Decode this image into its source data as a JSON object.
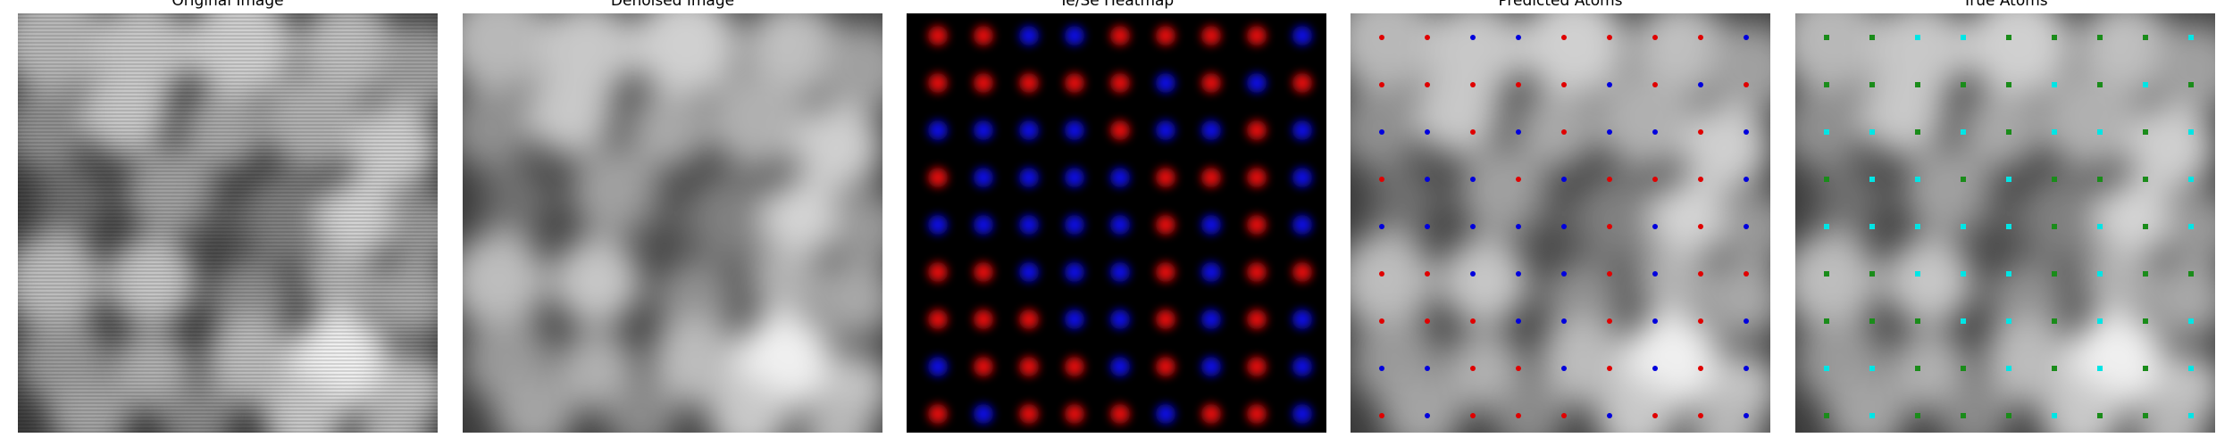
{
  "panels": [
    {
      "id": "original",
      "title": "Original Image"
    },
    {
      "id": "denoised",
      "title": "Denoised Image"
    },
    {
      "id": "heatmap",
      "title": "Te/Se Heatmap"
    },
    {
      "id": "predicted",
      "title": "Predicted Atoms"
    },
    {
      "id": "true",
      "title": "True Atoms"
    }
  ],
  "colors": {
    "te": "#e01010",
    "se": "#1010e0",
    "predicted_te": "#e00000",
    "predicted_se": "#0000dd",
    "true_a": "#00e5e5",
    "true_b": "#1a8c1a"
  },
  "lattice": {
    "heatmap": [
      "RRBBRRRRB",
      "RRRRRBRBR",
      "BBBBRBBRB",
      "RBBBBRRRB",
      "BBBBBRBRB",
      "RRBBBRBRR",
      "RRRBBRBRB",
      "BRRRBRBRB",
      "RBRRRBRRB"
    ],
    "predicted": [
      "RRBBRRRRB",
      "RRRRRBRBR",
      "BBRBRBBRB",
      "RBBRBRRRB",
      "BBBBBRBRB",
      "RRBBBRBRR",
      "RRRBBRBRB",
      "BBRRBRBRB",
      "RBRRRBRRB"
    ],
    "true": [
      "GGCCGGGGC",
      "GGGGGCGCG",
      "CCGCGCCGC",
      "GCCGCGGGC",
      "CCCCCGCGC",
      "GGCCCGCGG",
      "GGGCCGCGC",
      "CCGGCGCGC",
      "GCGGGCGGC"
    ]
  }
}
